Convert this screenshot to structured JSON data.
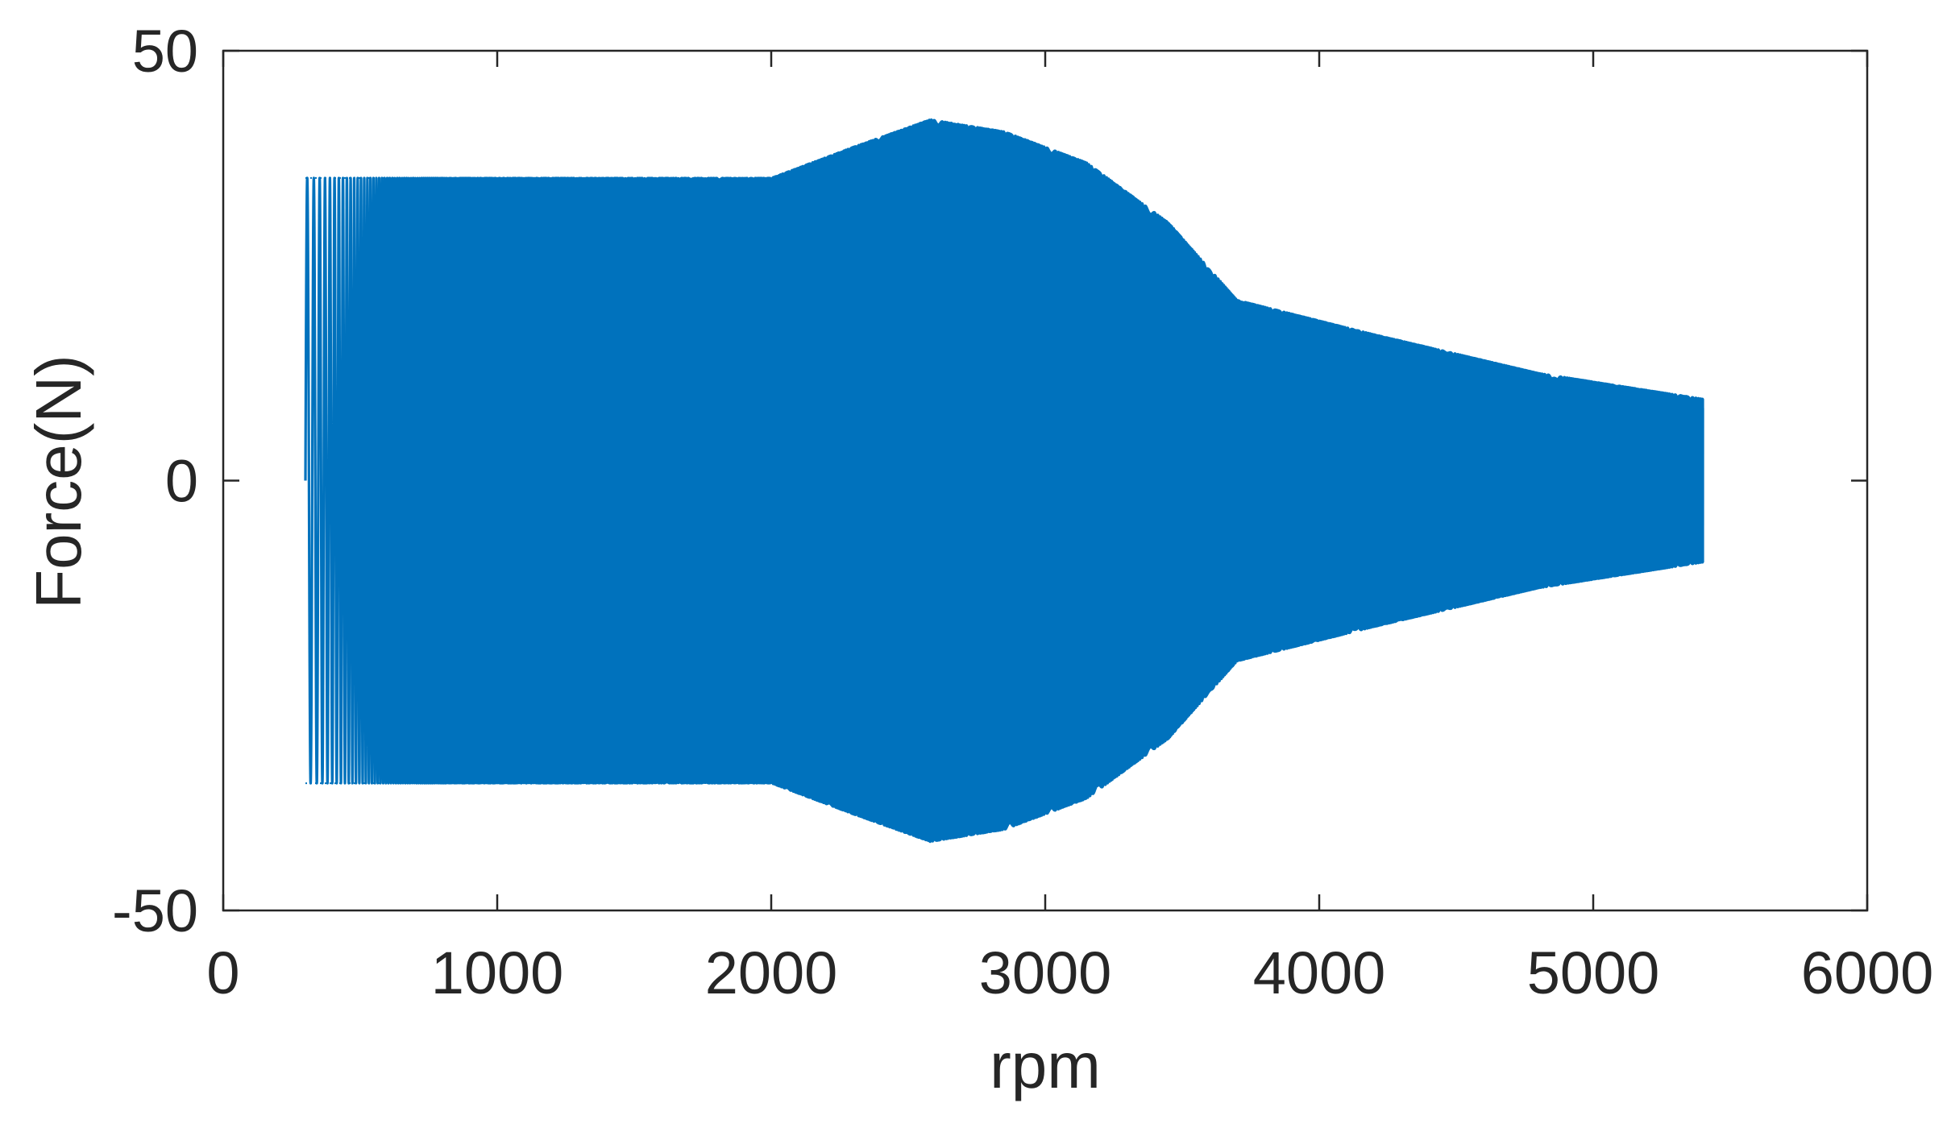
{
  "chart_data": {
    "type": "line",
    "title": "",
    "xlabel": "rpm",
    "ylabel": "Force(N)",
    "xlim": [
      0,
      6000
    ],
    "ylim": [
      -50,
      50
    ],
    "xticks": [
      0,
      1000,
      2000,
      3000,
      4000,
      5000,
      6000
    ],
    "yticks": [
      -50,
      0,
      50
    ],
    "xtick_labels": [
      "0",
      "1000",
      "2000",
      "3000",
      "4000",
      "5000",
      "6000"
    ],
    "ytick_labels": [
      "-50",
      "0",
      "50"
    ],
    "grid": false,
    "legend": "none",
    "series": [
      {
        "color": "#0072BD",
        "x_start": 300,
        "x_end": 5400,
        "envelope": {
          "rpm": [
            300,
            2000,
            2300,
            2580,
            2850,
            3150,
            3450,
            3700,
            4200,
            4800,
            5400
          ],
          "amplitude": [
            35.2,
            35.2,
            38.8,
            42.0,
            40.6,
            37.0,
            30.0,
            21.0,
            17.0,
            12.5,
            9.5
          ]
        }
      }
    ]
  }
}
